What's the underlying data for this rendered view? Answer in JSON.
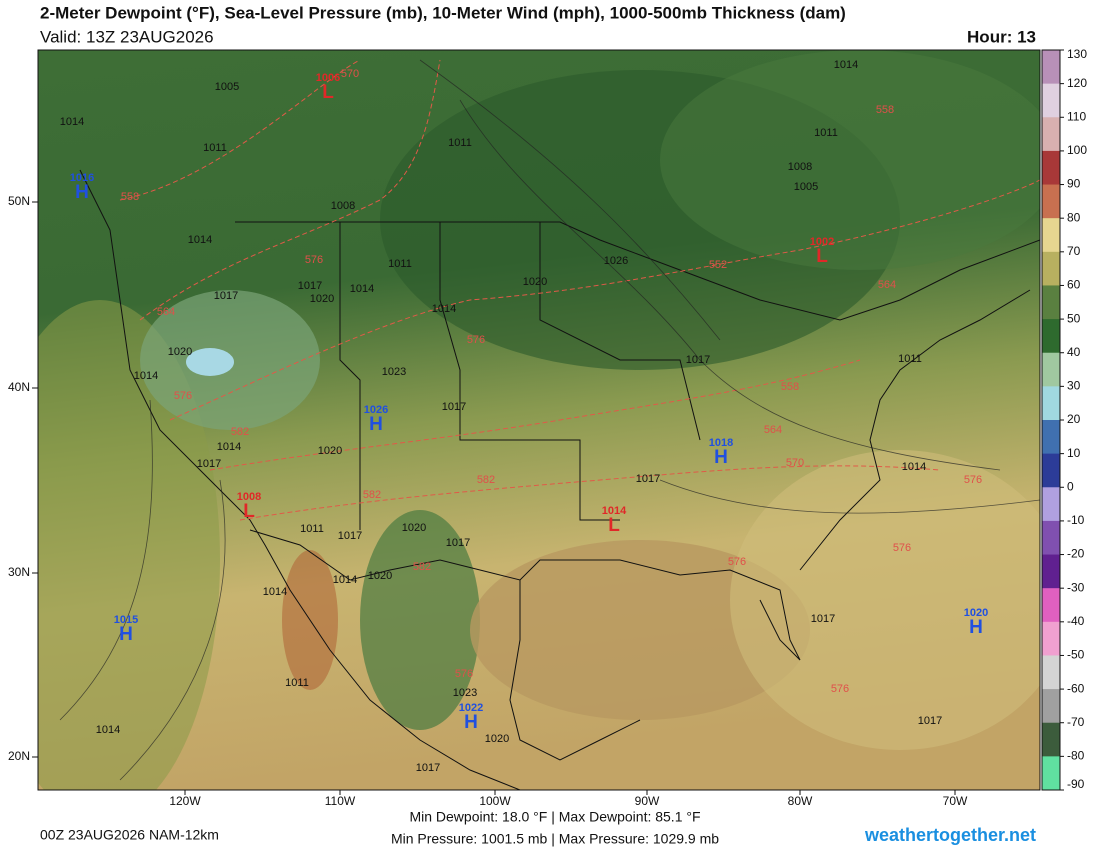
{
  "header": {
    "title": "2-Meter Dewpoint (°F), Sea-Level Pressure (mb), 10-Meter Wind (mph), 1000-500mb Thickness (dam)",
    "valid": "Valid: 13Z 23AUG2026",
    "hour": "Hour: 13"
  },
  "map": {
    "lat_labels": [
      "50N",
      "40N",
      "30N",
      "20N"
    ],
    "lon_labels": [
      "120W",
      "110W",
      "100W",
      "90W",
      "80W",
      "70W"
    ],
    "isobar_labels": [
      1005,
      1014,
      1011,
      1008,
      1014,
      1011,
      1017,
      1017,
      1020,
      1014,
      1014,
      1020,
      1026,
      1020,
      1014,
      1023,
      1017,
      1014,
      1017,
      1020,
      1017,
      1011,
      1017,
      1014,
      1011,
      1017,
      1020,
      1017,
      1014,
      1020,
      1014,
      1011,
      1014,
      1017,
      1017,
      1023,
      1020,
      1017,
      1011,
      1008,
      1005,
      1014,
      1011
    ],
    "thickness_labels": [
      570,
      558,
      576,
      564,
      576,
      576,
      582,
      582,
      582,
      582,
      552,
      564,
      558,
      558,
      564,
      570,
      576,
      576,
      576,
      576,
      576
    ],
    "centers": [
      {
        "letter": "H",
        "pressure": 1016
      },
      {
        "letter": "L",
        "pressure": 1006
      },
      {
        "letter": "L",
        "pressure": 1002
      },
      {
        "letter": "H",
        "pressure": 1026
      },
      {
        "letter": "H",
        "pressure": 1018
      },
      {
        "letter": "L",
        "pressure": 1008
      },
      {
        "letter": "L",
        "pressure": 1014
      },
      {
        "letter": "H",
        "pressure": 1015
      },
      {
        "letter": "H",
        "pressure": 1020
      },
      {
        "letter": "H",
        "pressure": 1022
      }
    ],
    "high_color": "#2050e0",
    "low_color": "#e02828"
  },
  "colorbar": {
    "ticks": [
      130,
      120,
      110,
      100,
      90,
      80,
      70,
      60,
      50,
      40,
      30,
      20,
      10,
      0,
      -10,
      -20,
      -30,
      -40,
      -50,
      -60,
      -70,
      -80,
      -90
    ],
    "colors": [
      "#b890b8",
      "#e0d0e0",
      "#d8b0b0",
      "#a83838",
      "#c87050",
      "#e6d690",
      "#b8b060",
      "#5a8040",
      "#2e6a2e",
      "#a0c8a0",
      "#a0d8e0",
      "#4070b0",
      "#2c3c98",
      "#b0a0e0",
      "#8050b0",
      "#602090",
      "#e060c0",
      "#f0a0d0",
      "#d4d4d4",
      "#a0a0a0",
      "#3c5c3c",
      "#60e0a0"
    ]
  },
  "footer": {
    "run": "00Z 23AUG2026 NAM-12km",
    "dewpoint_range": "Min Dewpoint:  18.0 °F | Max Dewpoint:  85.1 °F",
    "pressure_range": "Min Pressure: 1001.5 mb | Max Pressure: 1029.9 mb",
    "site": "weathertogether.net"
  }
}
